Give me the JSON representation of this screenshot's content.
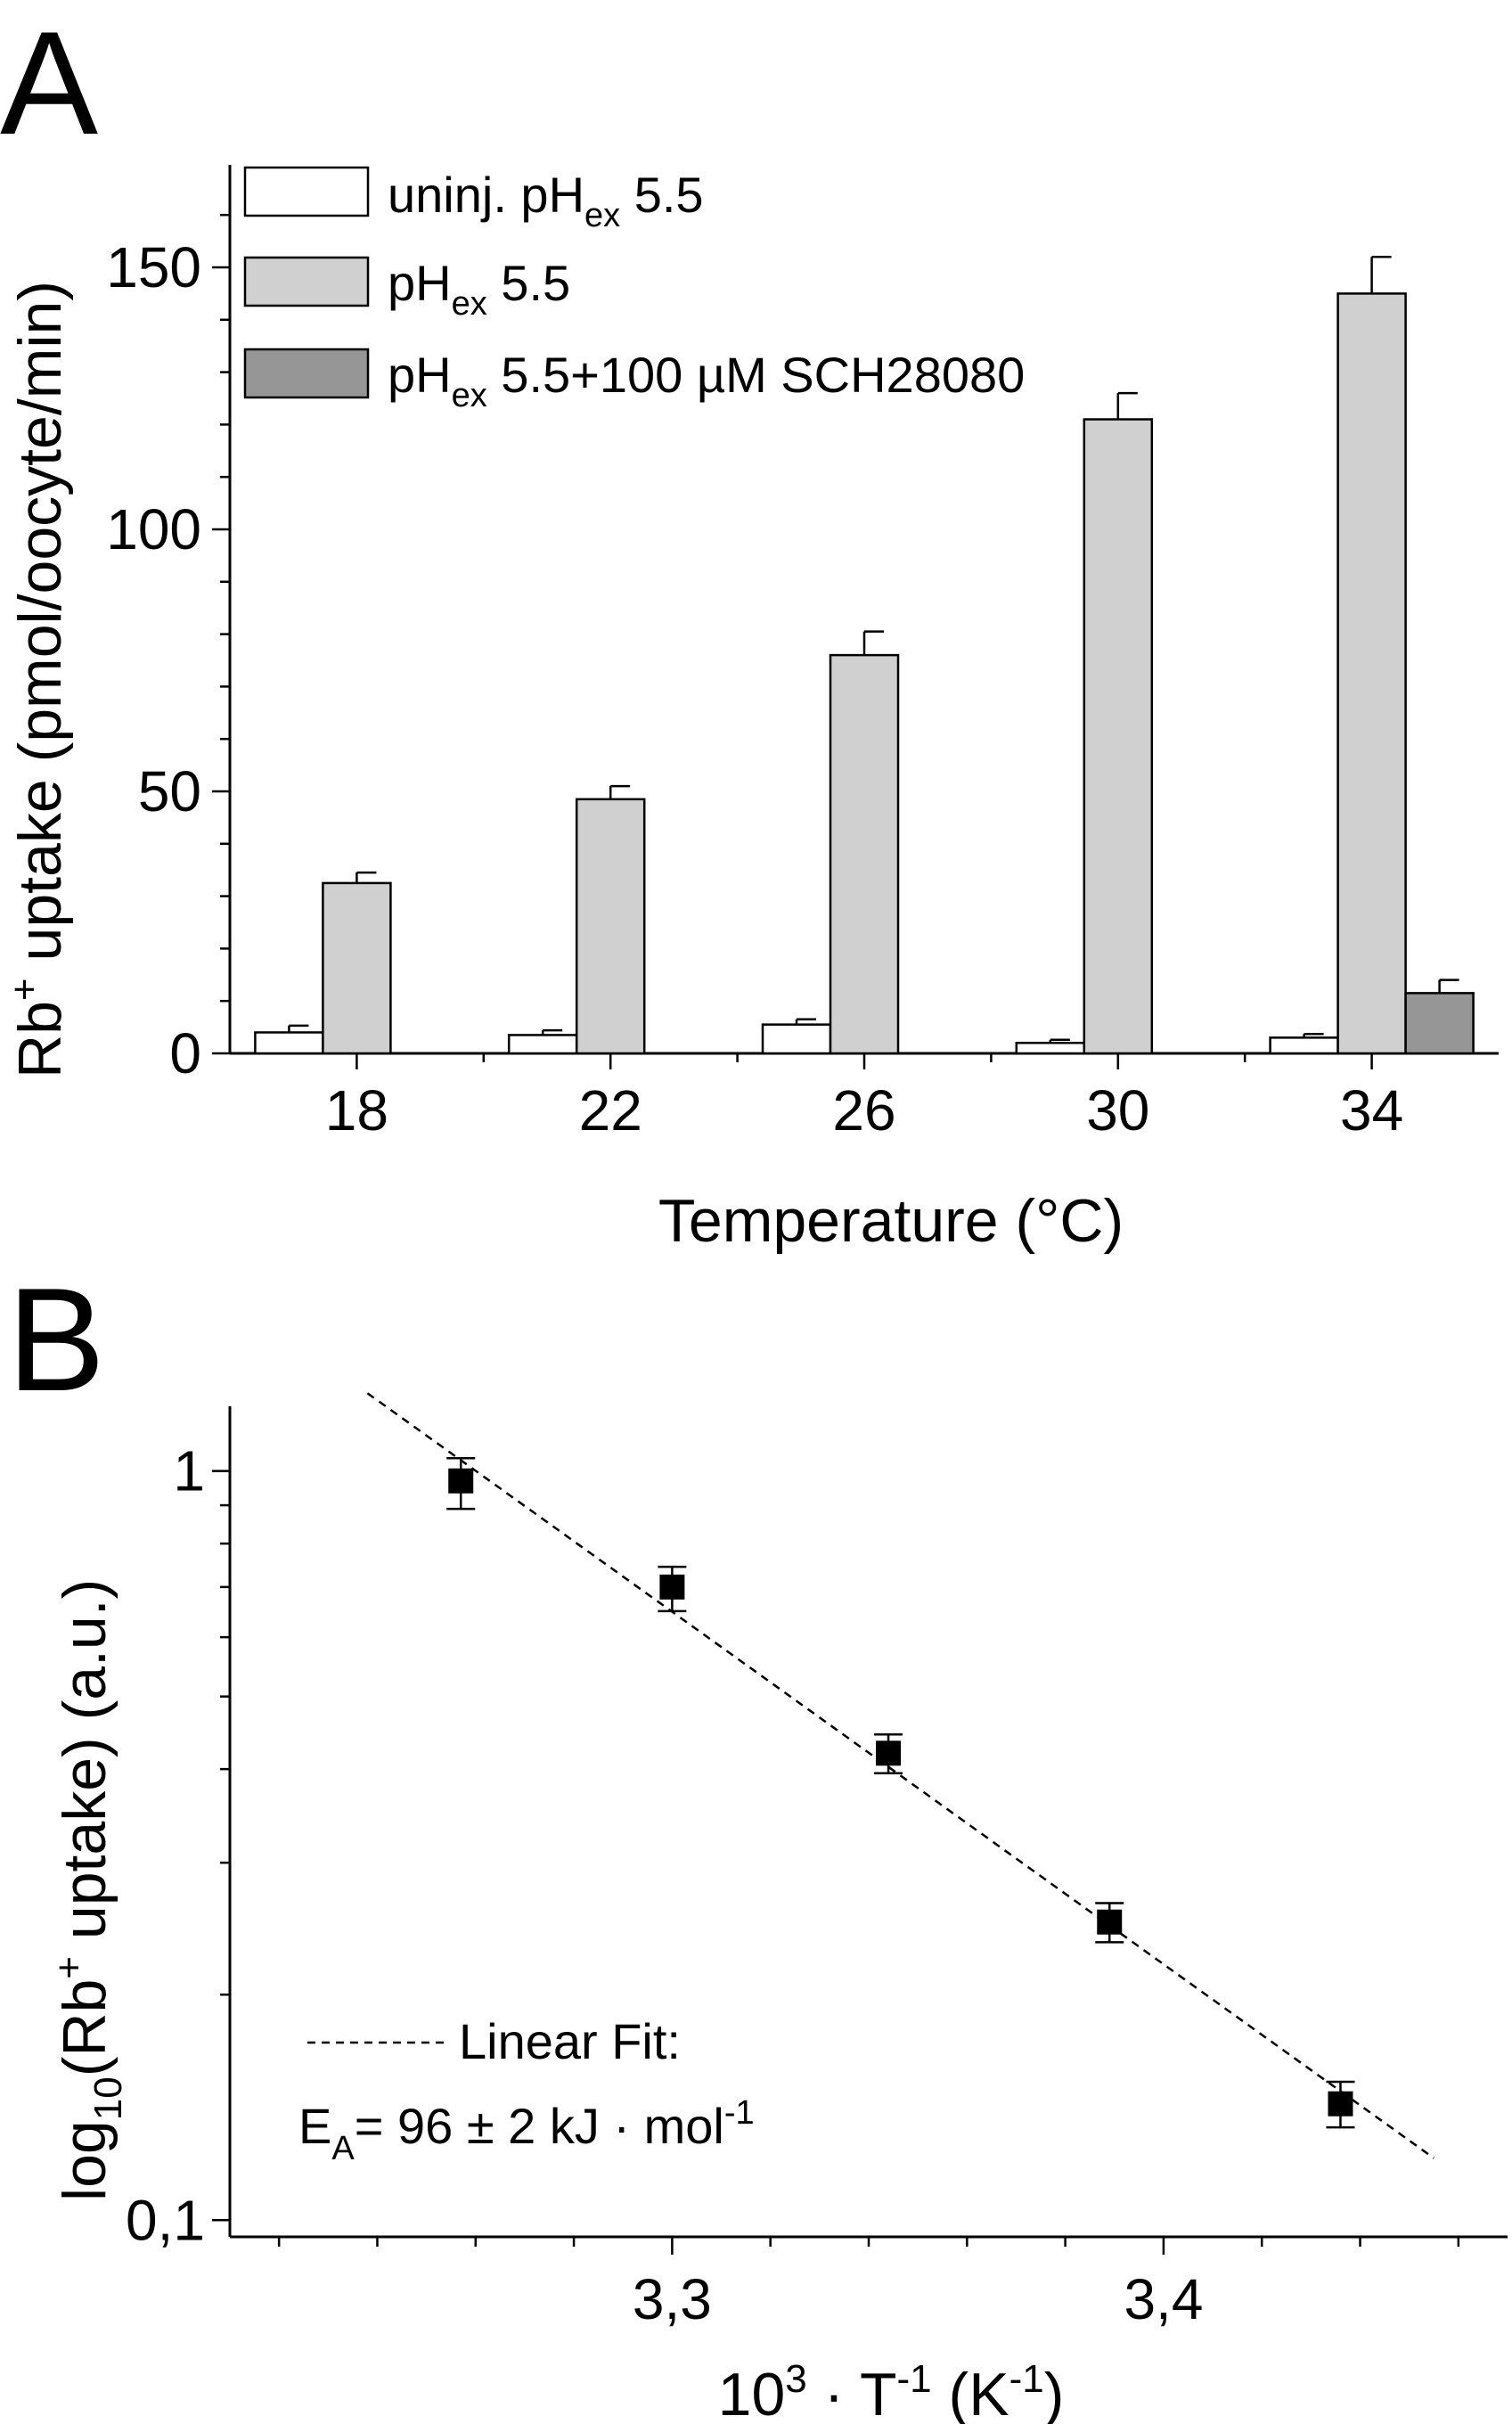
{
  "figure": {
    "panel_a": "A",
    "panel_b": "B"
  },
  "chart_data": [
    {
      "type": "bar",
      "panel": "A",
      "xlabel": "Temperature (°C)",
      "ylabel": {
        "pre": "Rb",
        "sup": "+",
        "post": " uptake (pmol/oocyte/min)"
      },
      "ylim": [
        0,
        150
      ],
      "yticks": [
        "0",
        "50",
        "100",
        "150"
      ],
      "categories": [
        "18",
        "22",
        "26",
        "30",
        "34"
      ],
      "series": [
        {
          "name": {
            "pre": "uninj. pH",
            "sub": "ex",
            "post": " 5.5"
          },
          "color": "#ffffff",
          "values": [
            4,
            3.5,
            5.5,
            2,
            3
          ],
          "errors": [
            1.3,
            0.9,
            1,
            0.6,
            0.7
          ]
        },
        {
          "name": {
            "pre": "pH",
            "sub": "ex",
            "post": " 5.5"
          },
          "color": "#d0d0d0",
          "values": [
            32.5,
            48.5,
            76,
            121,
            145
          ],
          "errors": [
            2,
            2.5,
            4.5,
            5,
            7
          ]
        },
        {
          "name": {
            "pre": "pH",
            "sub": "ex",
            "post": " 5.5+100 µM SCH28080"
          },
          "color": "#969696",
          "values": [
            null,
            null,
            null,
            null,
            11.5
          ],
          "errors": [
            null,
            null,
            null,
            null,
            2.5
          ]
        }
      ],
      "legend": "top-left",
      "grid": false
    },
    {
      "type": "scatter",
      "panel": "B",
      "xlabel": {
        "a": "10",
        "a_sup": "3",
        "b": " · T",
        "b_sup": "-1",
        "c": " (K",
        "c_sup": "-1",
        "d": ")"
      },
      "ylabel": {
        "a": "log",
        "a_sub": "10",
        "b": "(Rb",
        "b_sup": "+",
        "c": " uptake) (a.u.)"
      },
      "xlim": [
        3.21,
        3.47
      ],
      "ylim": [
        0.095,
        1.22
      ],
      "y_scale": "log",
      "xticks": [
        "3,3",
        "3,4"
      ],
      "yticks": [
        "0,1",
        "1"
      ],
      "x": [
        3.257,
        3.3,
        3.344,
        3.389,
        3.436
      ],
      "y": [
        0.97,
        0.7,
        0.42,
        0.25,
        0.143
      ],
      "y_err_low": [
        0.89,
        0.65,
        0.395,
        0.235,
        0.133
      ],
      "y_err_high": [
        1.04,
        0.745,
        0.445,
        0.265,
        0.153
      ],
      "fit": {
        "x": [
          3.238,
          3.455
        ],
        "y": [
          1.27,
          0.121
        ]
      },
      "annotation": {
        "fit_label": "Linear Fit:",
        "ea_main": "E",
        "ea_sub": "A",
        "ea_value": "= 96 ± 2 kJ · mol",
        "ea_sup": "-1"
      },
      "grid": false
    }
  ]
}
